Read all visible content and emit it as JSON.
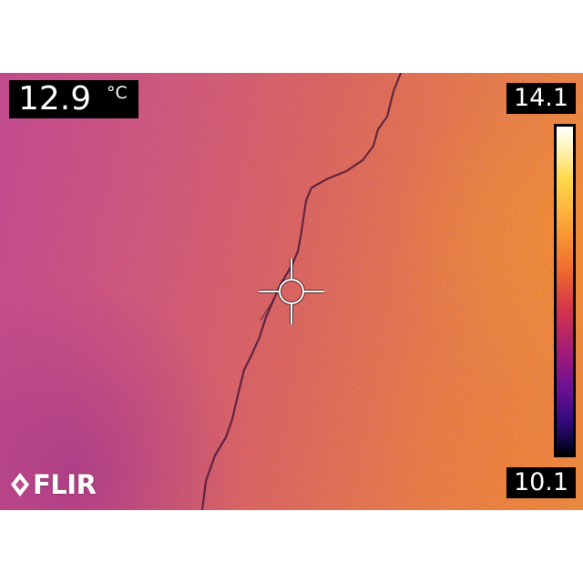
{
  "spot_reading": {
    "value": "12.9",
    "unit": "°C"
  },
  "scale": {
    "max": "14.1",
    "min": "10.1",
    "palette": "iron"
  },
  "brand": {
    "logo_text": "FLIR"
  },
  "icons": {
    "spot_meter": "crosshair-icon",
    "brand_mark": "flir-logo-icon"
  }
}
